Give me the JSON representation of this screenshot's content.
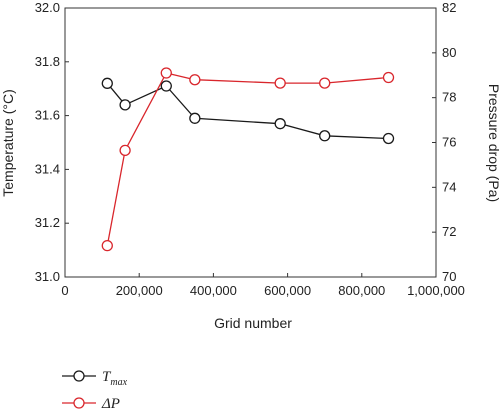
{
  "chart_data": {
    "type": "line",
    "title": "",
    "xlabel": "Grid number",
    "ylabel_left": "Temperature (°C)",
    "ylabel_right": "Pressure drop (Pa)",
    "xlim": [
      0,
      1000000
    ],
    "ylim_left": [
      31.0,
      32.0
    ],
    "ylim_right": [
      70,
      82
    ],
    "xticks": [
      0,
      200000,
      400000,
      600000,
      800000,
      1000000
    ],
    "xtick_labels": [
      "0",
      "200,000",
      "400,000",
      "600,000",
      "800,000",
      "1,000,000"
    ],
    "yticks_left": [
      31.0,
      31.2,
      31.4,
      31.6,
      31.8,
      32.0
    ],
    "ytick_labels_left": [
      "31.0",
      "31.2",
      "31.4",
      "31.6",
      "31.8",
      "32.0"
    ],
    "yticks_right": [
      70,
      72,
      74,
      76,
      78,
      80,
      82
    ],
    "ytick_labels_right": [
      "70",
      "72",
      "74",
      "76",
      "78",
      "80",
      "82"
    ],
    "grid": false,
    "legend_position": "bottom-left",
    "series": [
      {
        "name": "T",
        "name_subscript": "max",
        "axis": "left",
        "color": "#1a1a1a",
        "x": [
          114000,
          162000,
          273000,
          350000,
          580000,
          700000,
          872000
        ],
        "y": [
          31.72,
          31.64,
          31.71,
          31.59,
          31.57,
          31.525,
          31.515
        ]
      },
      {
        "name": "ΔP",
        "axis": "right",
        "color": "#d9262c",
        "x": [
          114000,
          162000,
          273000,
          350000,
          580000,
          700000,
          872000
        ],
        "y": [
          71.4,
          75.65,
          79.1,
          78.8,
          78.65,
          78.65,
          78.9
        ]
      }
    ]
  }
}
